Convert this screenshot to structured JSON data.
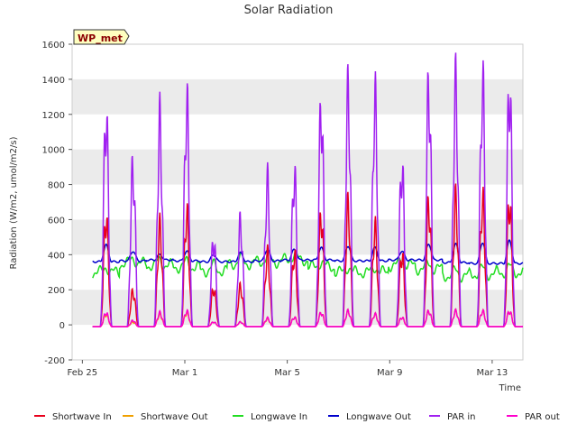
{
  "chart_data": {
    "type": "line",
    "title": "Solar Radiation",
    "xlabel": "Time",
    "ylabel": "Radiation (W/m2, umol/m2/s)",
    "ylim": [
      -200,
      1600
    ],
    "xlim": [
      -0.5,
      21.5
    ],
    "yticks": [
      -200,
      0,
      200,
      400,
      600,
      800,
      1000,
      1200,
      1400,
      1600
    ],
    "xticks": [
      {
        "day": 0,
        "label": "Feb 25"
      },
      {
        "day": 5,
        "label": "Mar 1"
      },
      {
        "day": 10,
        "label": "Mar 5"
      },
      {
        "day": 15,
        "label": "Mar 9"
      },
      {
        "day": 20,
        "label": "Mar 13"
      }
    ],
    "grid": "horizontal bands",
    "legend_position": "bottom",
    "badge": "WP_met",
    "x_units": "days since Feb 25",
    "series": [
      {
        "name": "Shortwave In",
        "color": "#e8001c",
        "daily_peaks": [
          720,
          230,
          650,
          740,
          250,
          260,
          470,
          480,
          730,
          780,
          640,
          480,
          800,
          820,
          830,
          830
        ]
      },
      {
        "name": "Shortwave Out",
        "color": "#f0a000",
        "daily_peaks": [
          80,
          30,
          80,
          90,
          30,
          30,
          50,
          60,
          90,
          100,
          80,
          60,
          100,
          100,
          100,
          100
        ]
      },
      {
        "name": "Longwave In",
        "color": "#22dd22",
        "daily_base": [
          300,
          350,
          340,
          330,
          310,
          350,
          360,
          370,
          330,
          300,
          300,
          340,
          320,
          280,
          290,
          300
        ]
      },
      {
        "name": "Longwave Out",
        "color": "#0000cc",
        "daily_base": [
          360,
          365,
          370,
          365,
          360,
          360,
          365,
          370,
          370,
          365,
          365,
          370,
          370,
          355,
          350,
          350
        ],
        "daily_peaks": [
          455,
          420,
          400,
          420,
          400,
          410,
          430,
          430,
          440,
          450,
          440,
          420,
          460,
          460,
          470,
          480
        ]
      },
      {
        "name": "PAR in",
        "color": "#a020f0",
        "daily_peaks": [
          1390,
          1040,
          1340,
          1460,
          570,
          680,
          940,
          1000,
          1430,
          1520,
          1480,
          1050,
          1560,
          1570,
          1580,
          1580
        ]
      },
      {
        "name": "PAR out",
        "color": "#ff00cc",
        "daily_peaks": [
          90,
          40,
          90,
          100,
          30,
          30,
          55,
          60,
          90,
          100,
          80,
          60,
          100,
          100,
          100,
          100
        ]
      }
    ],
    "day_offsets": [
      0.9,
      2.3,
      3.6,
      6.1,
      7.7,
      9.2,
      10.8,
      11.9,
      13.8,
      15.4,
      16.9,
      18.2,
      19.3,
      20.8,
      22.3,
      23.9
    ]
  }
}
